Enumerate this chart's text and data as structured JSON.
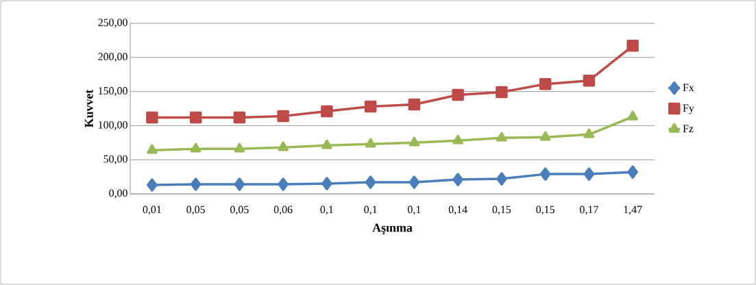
{
  "chart_data": {
    "type": "line",
    "xlabel": "Aşınma",
    "ylabel": "Kuvvet",
    "categories": [
      "0,01",
      "0,05",
      "0,05",
      "0,06",
      "0,1",
      "0,1",
      "0,1",
      "0,14",
      "0,15",
      "0,15",
      "0,17",
      "1,47"
    ],
    "series": [
      {
        "name": "Fx",
        "color": "#4a7ebb",
        "marker": "diamond",
        "values": [
          13,
          14,
          14,
          14,
          15,
          17,
          17,
          21,
          22,
          29,
          29,
          32
        ]
      },
      {
        "name": "Fy",
        "color": "#be4b48",
        "marker": "square",
        "values": [
          112,
          112,
          112,
          114,
          121,
          128,
          131,
          145,
          149,
          161,
          166,
          217
        ]
      },
      {
        "name": "Fz",
        "color": "#98b954",
        "marker": "triangle",
        "values": [
          64,
          66,
          66,
          68,
          71,
          73,
          75,
          78,
          82,
          83,
          87,
          113
        ]
      }
    ],
    "ylim": [
      0,
      250
    ],
    "yticks": [
      {
        "value": 0,
        "label": "0,00"
      },
      {
        "value": 50,
        "label": "50,00"
      },
      {
        "value": 100,
        "label": "100,00"
      },
      {
        "value": 150,
        "label": "150,00"
      },
      {
        "value": 200,
        "label": "200,00"
      },
      {
        "value": 250,
        "label": "250,00"
      }
    ],
    "grid": "y",
    "legend": "right",
    "line_style": "solid"
  }
}
